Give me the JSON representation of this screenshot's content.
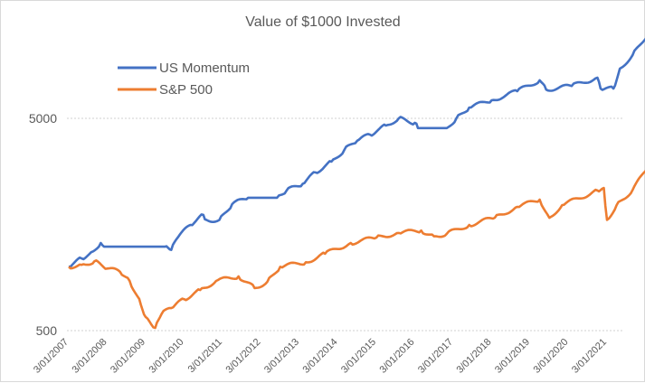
{
  "chart_data": {
    "type": "line",
    "title": "Value of $1000 Invested",
    "xlabel": "",
    "ylabel": "",
    "y_scale": "log",
    "ylim": [
      500,
      13000
    ],
    "y_ticks": [
      500,
      5000
    ],
    "y_tick_labels": [
      "500",
      "5000"
    ],
    "grid": "horizontal dotted at labeled ticks",
    "legend_position": "top-left",
    "x_tick_labels": [
      "3/01/2007",
      "3/01/2008",
      "3/01/2009",
      "3/01/2010",
      "3/01/2011",
      "3/01/2012",
      "3/01/2013",
      "3/01/2014",
      "3/01/2015",
      "3/01/2016",
      "3/01/2017",
      "3/01/2018",
      "3/01/2019",
      "3/01/2020",
      "3/01/2021"
    ],
    "xlim": [
      "2007-03",
      "2021-07"
    ],
    "series": [
      {
        "name": "US Momentum",
        "color": "#4472C4",
        "points": [
          [
            "2007-03",
            1000
          ],
          [
            "2007-07",
            1094
          ],
          [
            "2007-10",
            1170
          ],
          [
            "2008-01",
            1294
          ],
          [
            "2008-02",
            1242
          ],
          [
            "2009-09",
            1242
          ],
          [
            "2009-11",
            1200
          ],
          [
            "2010-01",
            1371
          ],
          [
            "2010-05",
            1574
          ],
          [
            "2010-09",
            1754
          ],
          [
            "2010-10",
            1660
          ],
          [
            "2011-02",
            1660
          ],
          [
            "2011-06",
            1972
          ],
          [
            "2011-11",
            2113
          ],
          [
            "2012-08",
            2113
          ],
          [
            "2012-11",
            2285
          ],
          [
            "2013-04",
            2454
          ],
          [
            "2013-08",
            2781
          ],
          [
            "2014-01",
            3126
          ],
          [
            "2014-05",
            3548
          ],
          [
            "2014-09",
            3917
          ],
          [
            "2015-01",
            4190
          ],
          [
            "2015-06",
            4625
          ],
          [
            "2015-10",
            5000
          ],
          [
            "2016-03",
            4760
          ],
          [
            "2016-04",
            4500
          ],
          [
            "2017-01",
            4500
          ],
          [
            "2017-04",
            5000
          ],
          [
            "2017-08",
            5624
          ],
          [
            "2018-03",
            6080
          ],
          [
            "2018-11",
            6710
          ],
          [
            "2019-06",
            7550
          ],
          [
            "2019-08",
            6830
          ],
          [
            "2020-04",
            7100
          ],
          [
            "2020-12",
            7770
          ],
          [
            "2021-01",
            6900
          ],
          [
            "2021-05",
            6900
          ],
          [
            "2021-07",
            8570
          ],
          [
            "2021-11",
            9930
          ],
          [
            "2022-04",
            12680
          ]
        ]
      },
      {
        "name": "S&P 500",
        "color": "#ED7D31",
        "points": [
          [
            "2007-03",
            1000
          ],
          [
            "2007-07",
            1020
          ],
          [
            "2007-11",
            1060
          ],
          [
            "2008-03",
            980
          ],
          [
            "2008-07",
            946
          ],
          [
            "2008-10",
            857
          ],
          [
            "2009-01",
            705
          ],
          [
            "2009-03",
            580
          ],
          [
            "2009-06",
            515
          ],
          [
            "2009-08",
            600
          ],
          [
            "2009-11",
            638
          ],
          [
            "2010-03",
            703
          ],
          [
            "2010-08",
            776
          ],
          [
            "2011-01",
            857
          ],
          [
            "2011-08",
            900
          ],
          [
            "2012-01",
            793
          ],
          [
            "2012-05",
            850
          ],
          [
            "2012-09",
            1000
          ],
          [
            "2013-05",
            1050
          ],
          [
            "2013-11",
            1151
          ],
          [
            "2014-07",
            1294
          ],
          [
            "2015-03",
            1371
          ],
          [
            "2015-10",
            1442
          ],
          [
            "2016-05",
            1480
          ],
          [
            "2016-09",
            1390
          ],
          [
            "2017-01",
            1430
          ],
          [
            "2017-08",
            1574
          ],
          [
            "2018-04",
            1702
          ],
          [
            "2018-11",
            1914
          ],
          [
            "2019-06",
            2070
          ],
          [
            "2019-09",
            1700
          ],
          [
            "2020-01",
            1950
          ],
          [
            "2020-12",
            2285
          ],
          [
            "2021-02",
            2350
          ],
          [
            "2021-03",
            1660
          ],
          [
            "2021-06",
            1950
          ],
          [
            "2021-11",
            2300
          ],
          [
            "2022-04",
            2980
          ]
        ]
      }
    ]
  }
}
